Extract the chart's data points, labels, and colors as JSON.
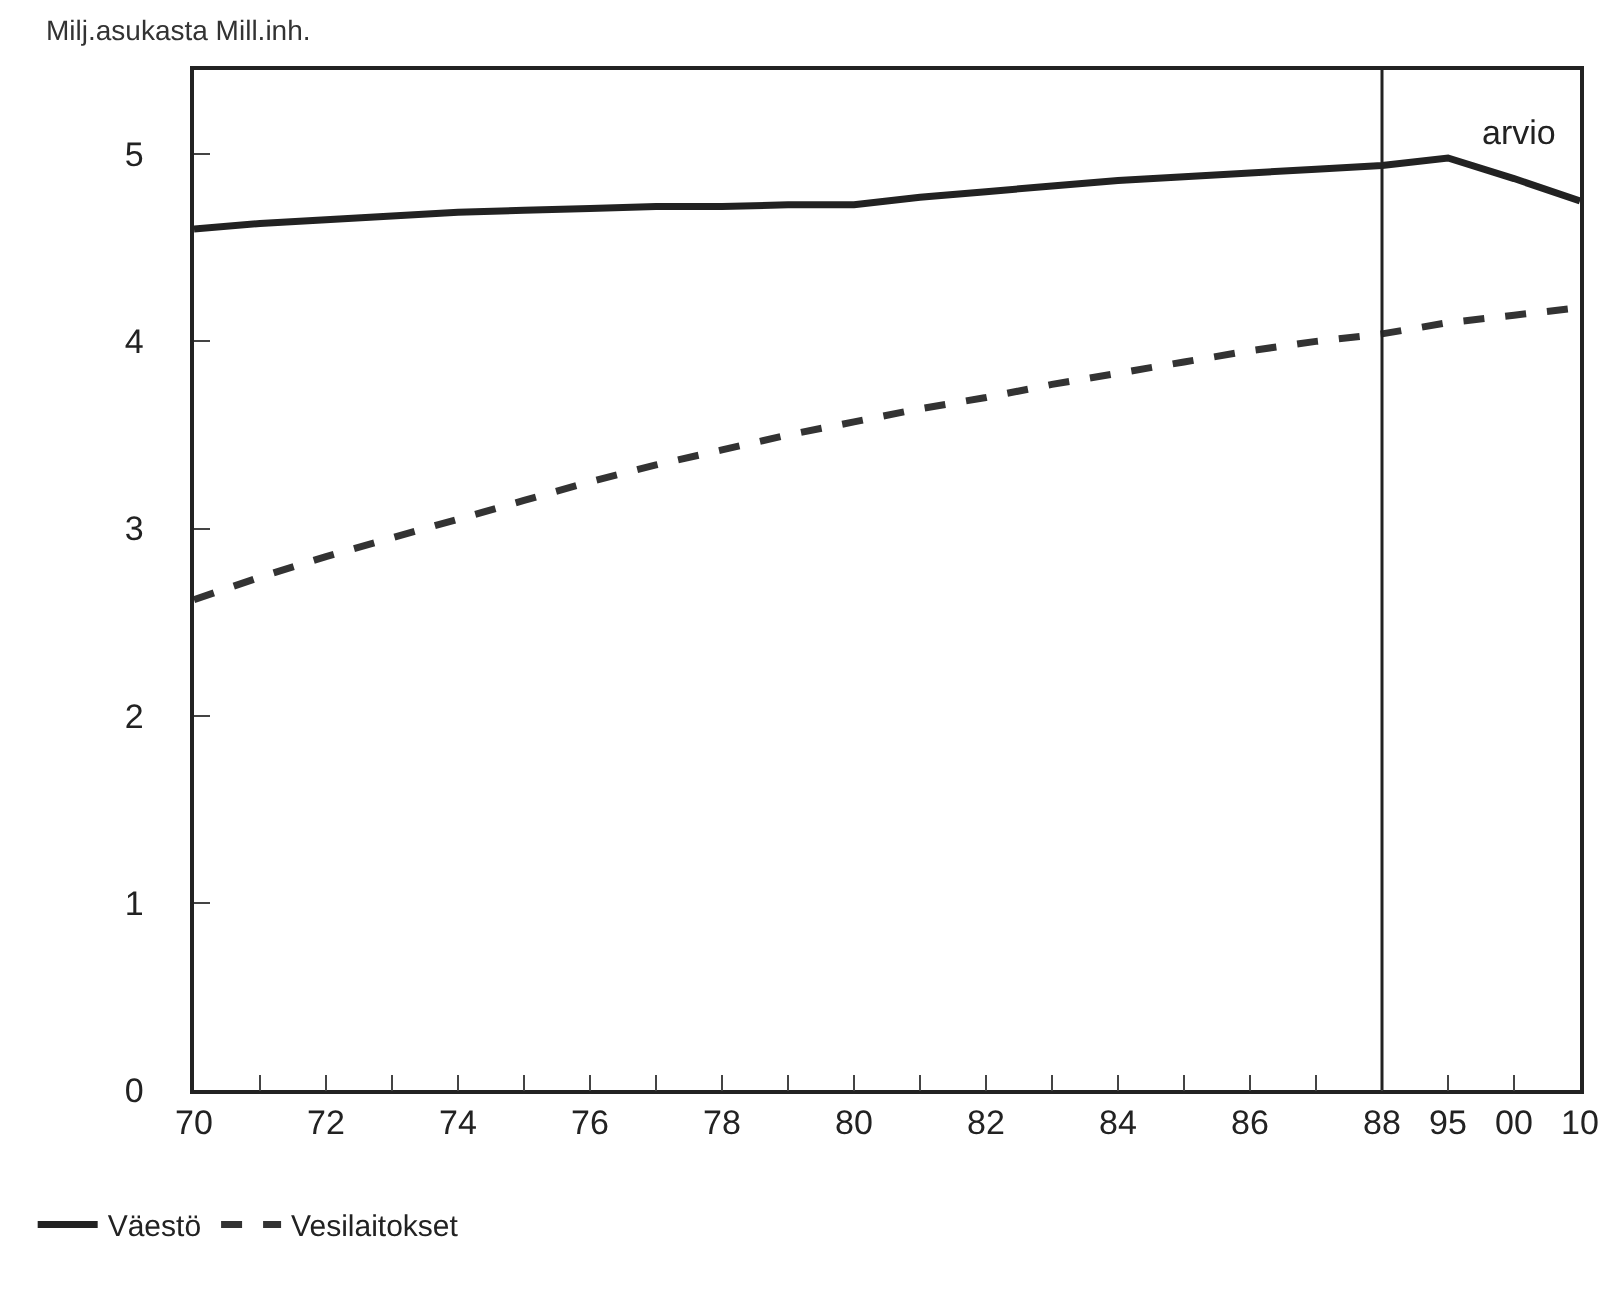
{
  "chart_data": {
    "type": "line",
    "ylabel": "Milj.asukasta Mill.inh.",
    "categories": [
      "70",
      null,
      "72",
      null,
      "74",
      null,
      "76",
      null,
      "78",
      null,
      "80",
      null,
      "82",
      null,
      "84",
      null,
      "86",
      null,
      "88",
      "95",
      "00",
      "10"
    ],
    "series": [
      {
        "name": "Väestö",
        "color": "#222222",
        "line_style": "solid",
        "values": [
          4.6,
          4.63,
          4.65,
          4.67,
          4.69,
          4.7,
          4.71,
          4.72,
          4.72,
          4.73,
          4.73,
          4.77,
          4.8,
          4.83,
          4.86,
          4.88,
          4.9,
          4.92,
          4.94,
          4.98,
          4.87,
          4.75
        ]
      },
      {
        "name": "Vesilaitokset",
        "color": "#333333",
        "line_style": "dashed",
        "values": [
          2.62,
          2.74,
          2.85,
          2.95,
          3.05,
          3.15,
          3.25,
          3.34,
          3.42,
          3.5,
          3.57,
          3.64,
          3.7,
          3.77,
          3.83,
          3.89,
          3.95,
          4.0,
          4.04,
          4.1,
          4.14,
          4.18
        ]
      }
    ],
    "ylim": [
      0,
      5.45
    ],
    "yticks": [
      0,
      1,
      2,
      3,
      4,
      5
    ],
    "grid": false,
    "legend": "bottom left",
    "marker": "none",
    "ref_lines": [
      {
        "axis": "x",
        "value": "88",
        "color": "#222222"
      }
    ],
    "annotations": [
      "arvio"
    ]
  }
}
